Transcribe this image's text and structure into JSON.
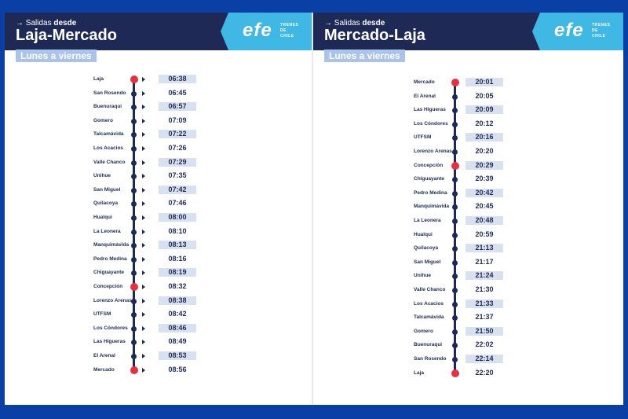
{
  "colors": {
    "navy": "#1e2a55",
    "cyan": "#3fb8e6",
    "red": "#e8303f",
    "shade": "#d7e1f0",
    "frame": "#0a3fa6"
  },
  "logo": {
    "text": "efe",
    "sub_lines": [
      "TRENES",
      "DE",
      "CHILE"
    ]
  },
  "left": {
    "salidas_prefix": "Salidas",
    "salidas_bold": "desde",
    "title": "Laja-Mercado",
    "days": "Lunes a viernes",
    "stops": [
      {
        "name": "Laja",
        "time": "06:38",
        "terminal": true
      },
      {
        "name": "San Rosendo",
        "time": "06:45"
      },
      {
        "name": "Buenuraqui",
        "time": "06:57"
      },
      {
        "name": "Gomero",
        "time": "07:09"
      },
      {
        "name": "Talcamávida",
        "time": "07:22"
      },
      {
        "name": "Los Acacios",
        "time": "07:26"
      },
      {
        "name": "Valle Chanco",
        "time": "07:29"
      },
      {
        "name": "Unihue",
        "time": "07:35"
      },
      {
        "name": "San Miguel",
        "time": "07:42"
      },
      {
        "name": "Quilacoya",
        "time": "07:46"
      },
      {
        "name": "Hualqui",
        "time": "08:00"
      },
      {
        "name": "La Leonera",
        "time": "08:10"
      },
      {
        "name": "Manquimávida",
        "time": "08:13"
      },
      {
        "name": "Pedro Medina",
        "time": "08:16"
      },
      {
        "name": "Chiguayante",
        "time": "08:19"
      },
      {
        "name": "Concepción",
        "time": "08:32",
        "transfer": true
      },
      {
        "name": "Lorenzo Arenas",
        "time": "08:38"
      },
      {
        "name": "UTFSM",
        "time": "08:42"
      },
      {
        "name": "Los Cóndores",
        "time": "08:46"
      },
      {
        "name": "Las Higueras",
        "time": "08:49"
      },
      {
        "name": "El Arenal",
        "time": "08:53"
      },
      {
        "name": "Mercado",
        "time": "08:56",
        "terminal": true
      }
    ]
  },
  "right": {
    "salidas_prefix": "Salidas",
    "salidas_bold": "desde",
    "title": "Mercado-Laja",
    "days": "Lunes a viernes",
    "stops": [
      {
        "name": "Mercado",
        "time": "20:01",
        "terminal": true
      },
      {
        "name": "El Arenal",
        "time": "20:05"
      },
      {
        "name": "Las Higueras",
        "time": "20:09"
      },
      {
        "name": "Los Cóndores",
        "time": "20:12"
      },
      {
        "name": "UTFSM",
        "time": "20:16"
      },
      {
        "name": "Lorenzo Arenas",
        "time": "20:20"
      },
      {
        "name": "Concepción",
        "time": "20:29",
        "transfer": true
      },
      {
        "name": "Chiguayante",
        "time": "20:39"
      },
      {
        "name": "Pedro Medina",
        "time": "20:42"
      },
      {
        "name": "Manquimávida",
        "time": "20:45"
      },
      {
        "name": "La Leonera",
        "time": "20:48"
      },
      {
        "name": "Hualqui",
        "time": "20:59"
      },
      {
        "name": "Quilacoya",
        "time": "21:13"
      },
      {
        "name": "San Miguel",
        "time": "21:17"
      },
      {
        "name": "Unihue",
        "time": "21:24"
      },
      {
        "name": "Valle Chanco",
        "time": "21:30"
      },
      {
        "name": "Los Acacios",
        "time": "21:33"
      },
      {
        "name": "Talcamávida",
        "time": "21:37"
      },
      {
        "name": "Gomero",
        "time": "21:50"
      },
      {
        "name": "Buenuraqui",
        "time": "22:02"
      },
      {
        "name": "San Rosendo",
        "time": "22:14"
      },
      {
        "name": "Laja",
        "time": "22:20",
        "terminal": true
      }
    ]
  }
}
